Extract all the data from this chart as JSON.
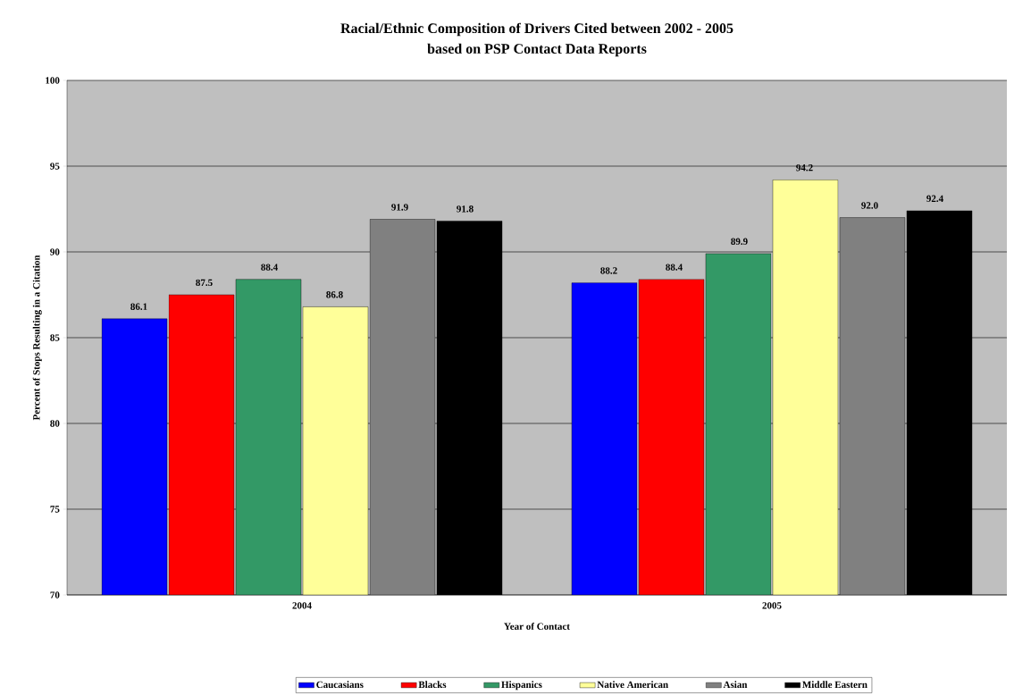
{
  "chart_data": {
    "type": "bar",
    "title": "Racial/Ethnic Composition of Drivers Cited between 2002 - 2005",
    "subtitle": "based on PSP Contact Data Reports",
    "xlabel": "Year of Contact",
    "ylabel": "Percent of Stops Resulting in a Citation",
    "categories": [
      "2004",
      "2005"
    ],
    "series": [
      {
        "name": "Caucasians",
        "color": "#0000ff",
        "values": [
          86.1,
          88.2
        ],
        "value_labels": [
          "86.1",
          "88.2"
        ]
      },
      {
        "name": "Blacks",
        "color": "#ff0000",
        "values": [
          87.5,
          88.4
        ],
        "value_labels": [
          "87.5",
          "88.4"
        ]
      },
      {
        "name": "Hispanics",
        "color": "#339966",
        "values": [
          88.4,
          89.9
        ],
        "value_labels": [
          "88.4",
          "89.9"
        ]
      },
      {
        "name": "Native American",
        "color": "#ffff99",
        "values": [
          86.8,
          94.2
        ],
        "value_labels": [
          "86.8",
          "94.2"
        ]
      },
      {
        "name": "Asian",
        "color": "#808080",
        "values": [
          91.9,
          92.0
        ],
        "value_labels": [
          "91.9",
          "92.0"
        ]
      },
      {
        "name": "Middle Eastern",
        "color": "#000000",
        "values": [
          91.8,
          92.4
        ],
        "value_labels": [
          "91.8",
          "92.4"
        ]
      }
    ],
    "ylim": [
      70,
      100
    ],
    "yticks": [
      70,
      75,
      80,
      85,
      90,
      95,
      100
    ],
    "grid": "y",
    "legend": "bottom"
  }
}
